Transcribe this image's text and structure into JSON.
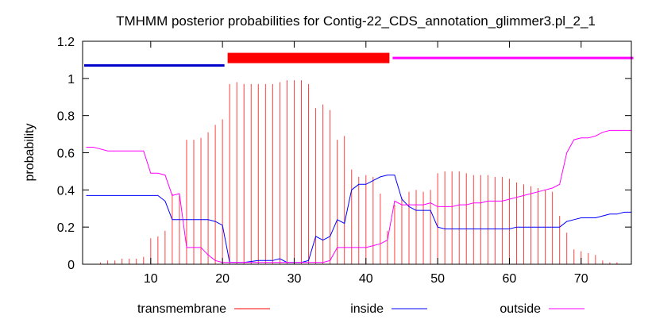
{
  "chart_data": {
    "type": "line",
    "title": "TMHMM posterior probabilities for Contig-22_CDS_annotation_glimmer3.pl_2_1",
    "xlabel": "",
    "ylabel": "probability",
    "xlim": [
      0.5,
      77
    ],
    "ylim": [
      0,
      1.2
    ],
    "xticks": [
      10,
      20,
      30,
      40,
      50,
      60,
      70
    ],
    "yticks": [
      0,
      0.2,
      0.4,
      0.6,
      0.8,
      1,
      1.2
    ],
    "ytick_labels": [
      "0",
      "0.2",
      "0.4",
      "0.6",
      "0.8",
      "1",
      "1.2"
    ],
    "grid": false,
    "legend_position": "bottom",
    "topology": [
      {
        "label": "inside",
        "start": 1,
        "end": 20,
        "color": "#0000cc"
      },
      {
        "label": "transmembrane",
        "start": 21,
        "end": 43,
        "color": "#ff0000"
      },
      {
        "label": "outside",
        "start": 44,
        "end": 77,
        "color": "#ff00ff"
      }
    ],
    "series": [
      {
        "name": "transmembrane",
        "style": "impulse",
        "color": "#ff0000",
        "x": [
          1,
          2,
          3,
          4,
          5,
          6,
          7,
          8,
          9,
          10,
          11,
          12,
          13,
          14,
          15,
          16,
          17,
          18,
          19,
          20,
          21,
          22,
          23,
          24,
          25,
          26,
          27,
          28,
          29,
          30,
          31,
          32,
          33,
          34,
          35,
          36,
          37,
          38,
          39,
          40,
          41,
          42,
          43,
          44,
          45,
          46,
          47,
          48,
          49,
          50,
          51,
          52,
          53,
          54,
          55,
          56,
          57,
          58,
          59,
          60,
          61,
          62,
          63,
          64,
          65,
          66,
          67,
          68,
          69,
          70,
          71,
          72,
          73,
          74,
          75,
          76,
          77
        ],
        "values": [
          0.0,
          0.0,
          0.01,
          0.02,
          0.02,
          0.03,
          0.03,
          0.03,
          0.04,
          0.14,
          0.15,
          0.18,
          0.38,
          0.38,
          0.67,
          0.67,
          0.68,
          0.71,
          0.75,
          0.78,
          0.97,
          0.98,
          0.97,
          0.97,
          0.97,
          0.97,
          0.97,
          0.98,
          0.99,
          0.99,
          0.99,
          0.97,
          0.84,
          0.86,
          0.83,
          0.67,
          0.69,
          0.51,
          0.47,
          0.48,
          0.47,
          0.38,
          0.18,
          0.32,
          0.36,
          0.39,
          0.4,
          0.39,
          0.4,
          0.49,
          0.5,
          0.5,
          0.5,
          0.49,
          0.48,
          0.48,
          0.48,
          0.47,
          0.47,
          0.46,
          0.44,
          0.43,
          0.42,
          0.41,
          0.4,
          0.39,
          0.26,
          0.17,
          0.08,
          0.07,
          0.06,
          0.05,
          0.02,
          0.01,
          0.01,
          0.0,
          0.0
        ]
      },
      {
        "name": "inside",
        "style": "line",
        "color": "#0000ff",
        "x": [
          1,
          2,
          3,
          4,
          5,
          6,
          7,
          8,
          9,
          10,
          11,
          12,
          13,
          14,
          15,
          16,
          17,
          18,
          19,
          20,
          21,
          22,
          23,
          24,
          25,
          26,
          27,
          28,
          29,
          30,
          31,
          32,
          33,
          34,
          35,
          36,
          37,
          38,
          39,
          40,
          41,
          42,
          43,
          44,
          45,
          46,
          47,
          48,
          49,
          50,
          51,
          52,
          53,
          54,
          55,
          56,
          57,
          58,
          59,
          60,
          61,
          62,
          63,
          64,
          65,
          66,
          67,
          68,
          69,
          70,
          71,
          72,
          73,
          74,
          75,
          76,
          77
        ],
        "values": [
          0.37,
          0.37,
          0.37,
          0.37,
          0.37,
          0.37,
          0.37,
          0.37,
          0.37,
          0.37,
          0.37,
          0.34,
          0.24,
          0.24,
          0.24,
          0.24,
          0.24,
          0.24,
          0.23,
          0.21,
          0.01,
          0.01,
          0.01,
          0.015,
          0.02,
          0.02,
          0.02,
          0.03,
          0.01,
          0.01,
          0.01,
          0.02,
          0.15,
          0.13,
          0.15,
          0.24,
          0.22,
          0.4,
          0.43,
          0.43,
          0.45,
          0.47,
          0.48,
          0.48,
          0.35,
          0.31,
          0.29,
          0.29,
          0.29,
          0.2,
          0.19,
          0.19,
          0.19,
          0.19,
          0.19,
          0.19,
          0.19,
          0.19,
          0.19,
          0.19,
          0.2,
          0.2,
          0.2,
          0.2,
          0.2,
          0.2,
          0.2,
          0.23,
          0.24,
          0.25,
          0.25,
          0.25,
          0.26,
          0.27,
          0.27,
          0.28,
          0.28
        ]
      },
      {
        "name": "outside",
        "style": "line",
        "color": "#ff00ff",
        "x": [
          1,
          2,
          3,
          4,
          5,
          6,
          7,
          8,
          9,
          10,
          11,
          12,
          13,
          14,
          15,
          16,
          17,
          18,
          19,
          20,
          21,
          22,
          23,
          24,
          25,
          26,
          27,
          28,
          29,
          30,
          31,
          32,
          33,
          34,
          35,
          36,
          37,
          38,
          39,
          40,
          41,
          42,
          43,
          44,
          45,
          46,
          47,
          48,
          49,
          50,
          51,
          52,
          53,
          54,
          55,
          56,
          57,
          58,
          59,
          60,
          61,
          62,
          63,
          64,
          65,
          66,
          67,
          68,
          69,
          70,
          71,
          72,
          73,
          74,
          75,
          76,
          77
        ],
        "values": [
          0.63,
          0.63,
          0.62,
          0.61,
          0.61,
          0.61,
          0.61,
          0.61,
          0.61,
          0.49,
          0.49,
          0.48,
          0.37,
          0.38,
          0.09,
          0.09,
          0.09,
          0.05,
          0.02,
          0.01,
          0.01,
          0.01,
          0.01,
          0.01,
          0.01,
          0.01,
          0.01,
          0.01,
          0.01,
          0.01,
          0.01,
          0.01,
          0.01,
          0.01,
          0.02,
          0.09,
          0.09,
          0.09,
          0.09,
          0.09,
          0.1,
          0.11,
          0.13,
          0.34,
          0.32,
          0.32,
          0.32,
          0.32,
          0.33,
          0.31,
          0.31,
          0.31,
          0.32,
          0.32,
          0.33,
          0.33,
          0.34,
          0.34,
          0.34,
          0.35,
          0.36,
          0.37,
          0.38,
          0.39,
          0.4,
          0.41,
          0.43,
          0.6,
          0.67,
          0.68,
          0.68,
          0.69,
          0.71,
          0.72,
          0.72,
          0.72,
          0.72
        ]
      }
    ]
  }
}
